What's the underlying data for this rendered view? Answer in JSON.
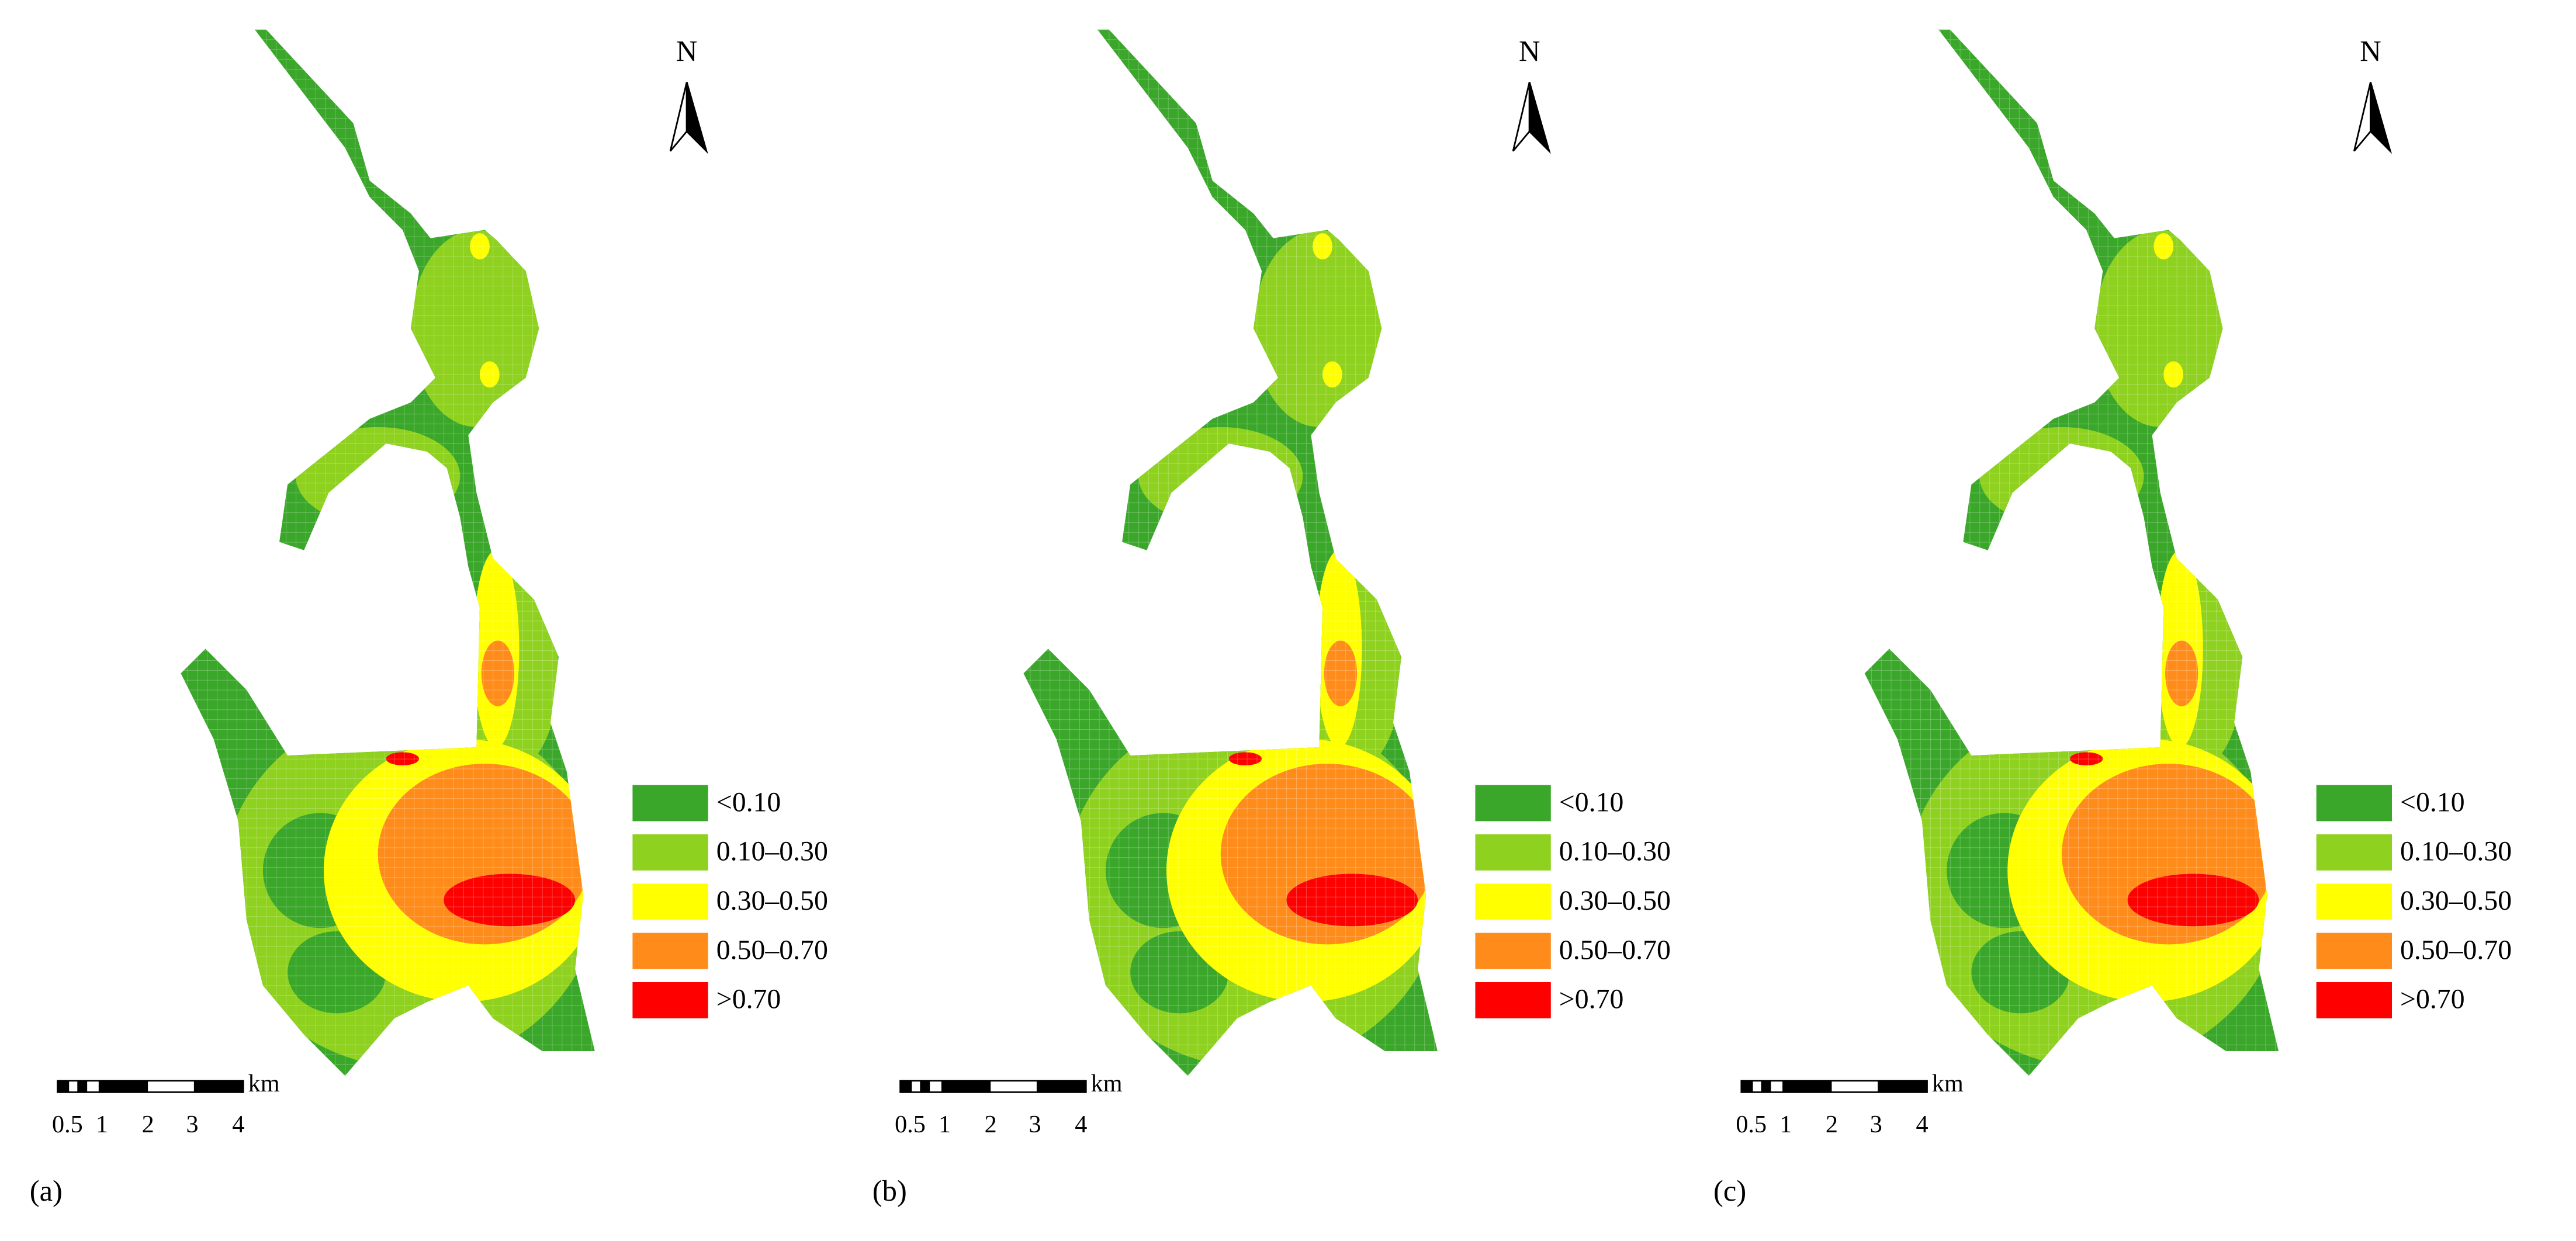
{
  "panels": [
    {
      "label": "(a)",
      "north": "N",
      "scale_unit": "km",
      "scale_labels": [
        "0.5",
        "1",
        "2",
        "3",
        "4"
      ],
      "legend": [
        {
          "label": "<0.10",
          "color": "#3aa72a"
        },
        {
          "label": "0.10–0.30",
          "color": "#8fd11f"
        },
        {
          "label": "0.30–0.50",
          "color": "#ffff00"
        },
        {
          "label": "0.50–0.70",
          "color": "#ff8c1a"
        },
        {
          "label": ">0.70",
          "color": "#ff0000"
        }
      ]
    },
    {
      "label": "(b)",
      "north": "N",
      "scale_unit": "km",
      "scale_labels": [
        "0.5",
        "1",
        "2",
        "3",
        "4"
      ],
      "legend": [
        {
          "label": "<0.10",
          "color": "#3aa72a"
        },
        {
          "label": "0.10–0.30",
          "color": "#8fd11f"
        },
        {
          "label": "0.30–0.50",
          "color": "#ffff00"
        },
        {
          "label": "0.50–0.70",
          "color": "#ff8c1a"
        },
        {
          "label": ">0.70",
          "color": "#ff0000"
        }
      ]
    },
    {
      "label": "(c)",
      "north": "N",
      "scale_unit": "km",
      "scale_labels": [
        "0.5",
        "1",
        "2",
        "3",
        "4"
      ],
      "legend": [
        {
          "label": "<0.10",
          "color": "#3aa72a"
        },
        {
          "label": "0.10–0.30",
          "color": "#8fd11f"
        },
        {
          "label": "0.30–0.50",
          "color": "#ffff00"
        },
        {
          "label": "0.50–0.70",
          "color": "#ff8c1a"
        },
        {
          "label": ">0.70",
          "color": "#ff0000"
        }
      ]
    }
  ]
}
